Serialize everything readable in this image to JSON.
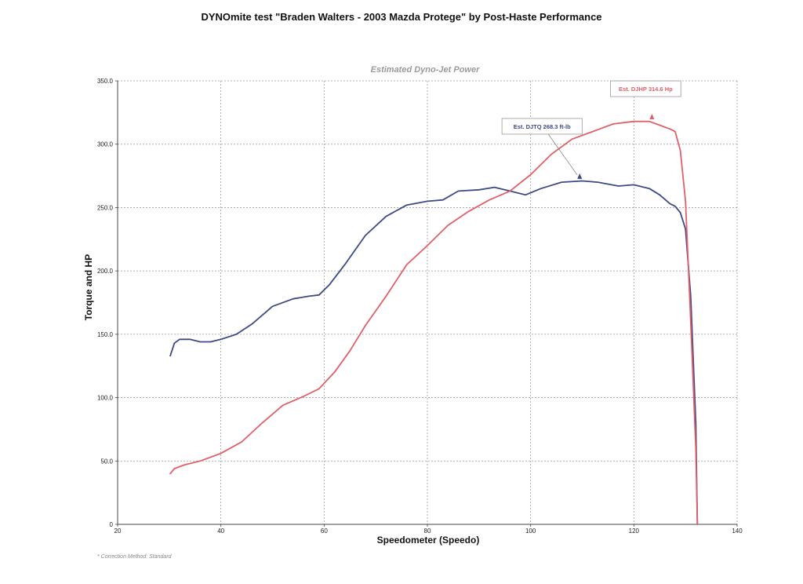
{
  "page": {
    "title": "DYNOmite test \"Braden Walters - 2003 Mazda Protege\" by Post-Haste Performance",
    "footnote": "* Correction Method: Standard"
  },
  "chart_data": {
    "type": "line",
    "title": "Estimated Dyno-Jet Power",
    "xlabel": "Speedometer (Speedo)",
    "ylabel": "Torque and HP",
    "xlim": [
      20,
      140
    ],
    "ylim": [
      0,
      350
    ],
    "xticks": [
      20,
      40,
      60,
      80,
      100,
      120,
      140
    ],
    "yticks": [
      "0",
      "50.0",
      "100.0",
      "150.0",
      "200.0",
      "250.0",
      "300.0",
      "350.0"
    ],
    "grid": true,
    "series": [
      {
        "key": "torque",
        "color": "#3d4a86",
        "x": [
          30.2,
          31,
          32,
          34,
          36,
          38,
          40,
          43,
          46,
          50,
          54,
          57,
          59,
          61,
          64,
          68,
          72,
          76,
          80,
          83,
          86,
          90,
          93,
          96,
          99,
          102,
          106,
          110,
          113,
          117,
          120,
          123,
          125,
          127,
          128,
          129,
          130,
          131,
          132,
          132.3
        ],
        "y": [
          133,
          143,
          146,
          146,
          144,
          144,
          146,
          150,
          158,
          172,
          178,
          180,
          181,
          189,
          205,
          228,
          243,
          252,
          255,
          256,
          263,
          264,
          266,
          263,
          260,
          265,
          270,
          271,
          270,
          267,
          268,
          265,
          260,
          253,
          251,
          246,
          233,
          180,
          80,
          0
        ]
      },
      {
        "key": "hp",
        "color": "#e0606a",
        "x": [
          30.2,
          31,
          33,
          36,
          40,
          44,
          48,
          52,
          56,
          59,
          62,
          65,
          68,
          72,
          76,
          80,
          84,
          88,
          92,
          96,
          100,
          104,
          108,
          112,
          116,
          120,
          123,
          125,
          127,
          128,
          129,
          130,
          131,
          132,
          132.3
        ],
        "y": [
          40,
          44,
          47,
          50,
          56,
          65,
          80,
          94,
          101,
          107,
          120,
          137,
          157,
          180,
          205,
          220,
          236,
          247,
          256,
          263,
          276,
          292,
          304,
          310,
          316,
          318,
          318,
          315,
          312,
          310,
          295,
          255,
          160,
          60,
          0
        ]
      }
    ],
    "annotations": [
      {
        "key": "torque_peak",
        "text": "Est. DJTQ 268.3 ft-lb",
        "color": "#3d4a86",
        "x": 109.5,
        "y": 272
      },
      {
        "key": "hp_peak",
        "text": "Est. DJHP 314.6 Hp",
        "color": "#e0606a",
        "x": 123.5,
        "y": 319
      }
    ]
  }
}
